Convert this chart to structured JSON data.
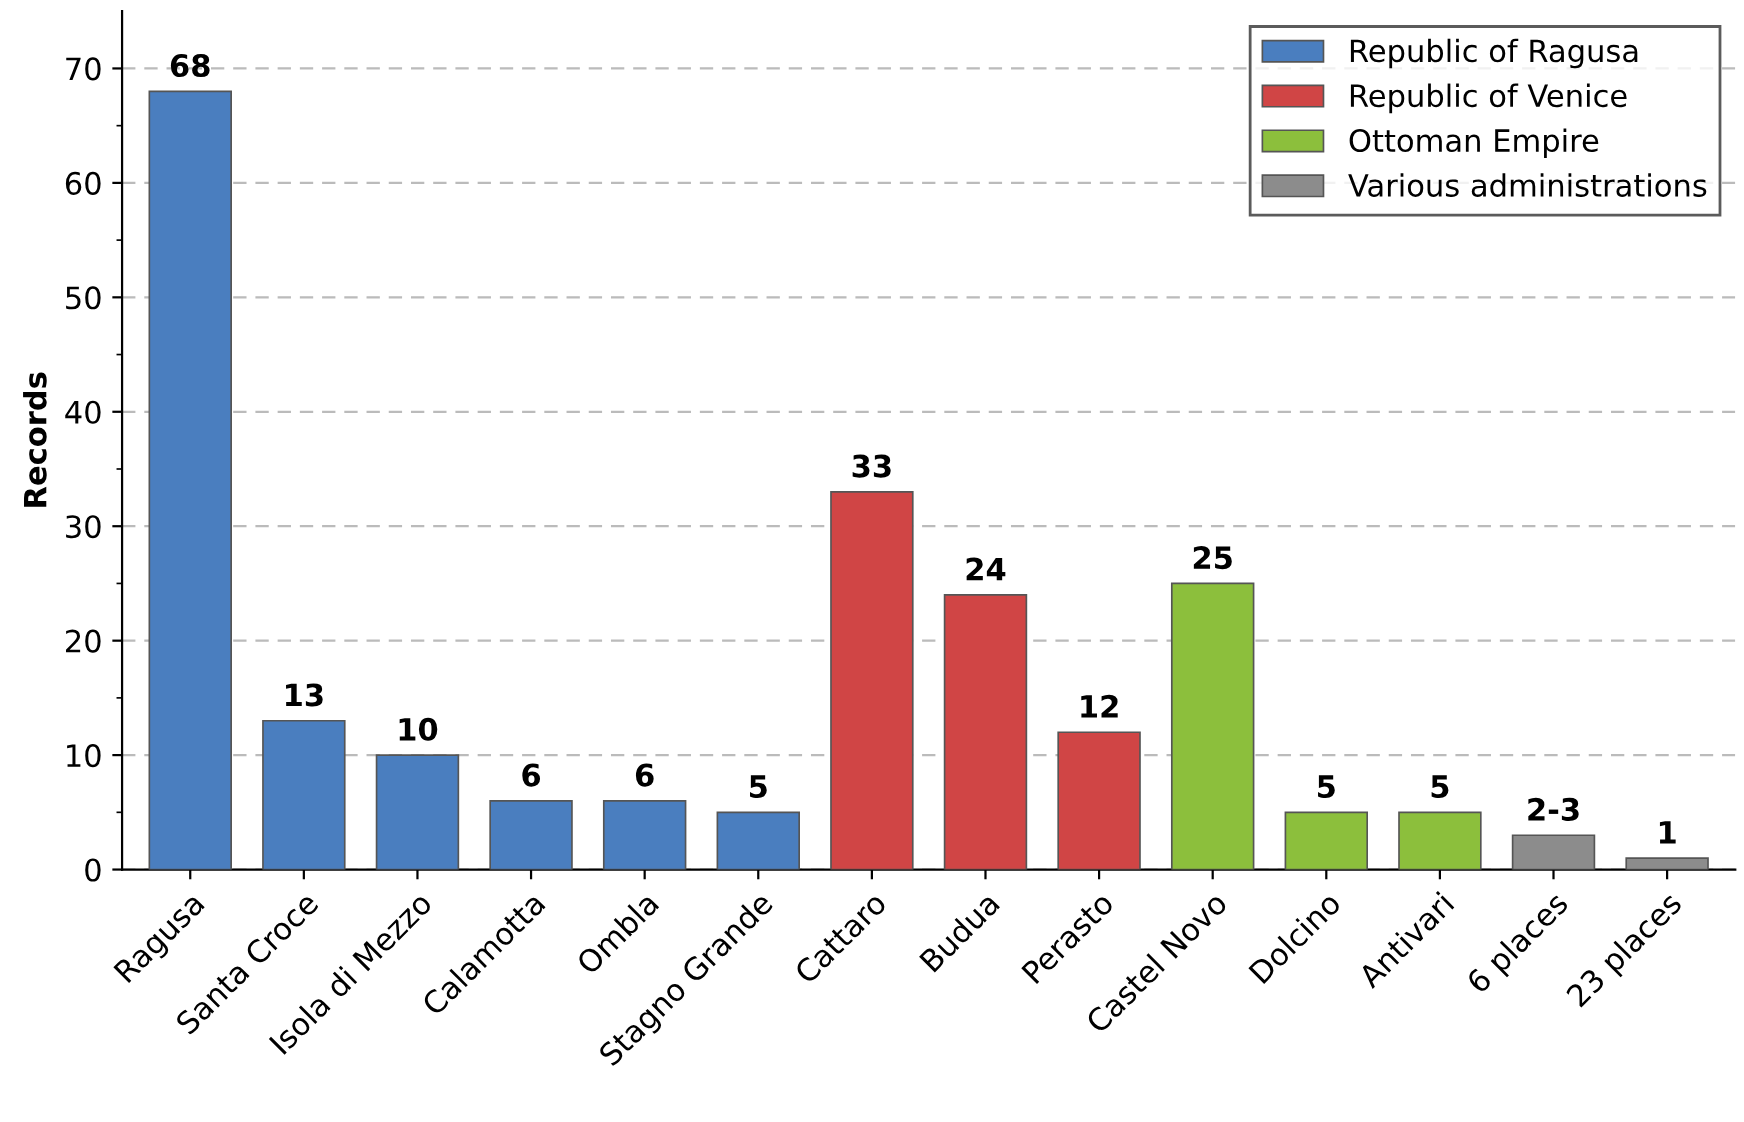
{
  "chart_data": {
    "type": "bar",
    "ylabel": "Records",
    "categories": [
      "Ragusa",
      "Santa Croce",
      "Isola di Mezzo",
      "Calamotta",
      "Ombla",
      "Stagno Grande",
      "Cattaro",
      "Budua",
      "Perasto",
      "Castel Novo",
      "Dolcino",
      "Antivari",
      "6 places",
      "23 places"
    ],
    "series": [
      {
        "name": "Republic of Ragusa",
        "color": "#4a7ebf",
        "values": [
          68,
          13,
          10,
          6,
          6,
          5,
          null,
          null,
          null,
          null,
          null,
          null,
          null,
          null
        ],
        "value_labels": [
          "68",
          "13",
          "10",
          "6",
          "6",
          "5",
          null,
          null,
          null,
          null,
          null,
          null,
          null,
          null
        ]
      },
      {
        "name": "Republic of Venice",
        "color": "#d04545",
        "values": [
          null,
          null,
          null,
          null,
          null,
          null,
          33,
          24,
          12,
          null,
          null,
          null,
          null,
          null
        ],
        "value_labels": [
          null,
          null,
          null,
          null,
          null,
          null,
          "33",
          "24",
          "12",
          null,
          null,
          null,
          null,
          null
        ]
      },
      {
        "name": "Ottoman Empire",
        "color": "#8cbf3c",
        "values": [
          null,
          null,
          null,
          null,
          null,
          null,
          null,
          null,
          null,
          25,
          5,
          5,
          null,
          null
        ],
        "value_labels": [
          null,
          null,
          null,
          null,
          null,
          null,
          null,
          null,
          null,
          "25",
          "5",
          "5",
          null,
          null
        ]
      },
      {
        "name": "Various administrations",
        "color": "#8c8c8c",
        "values": [
          null,
          null,
          null,
          null,
          null,
          null,
          null,
          null,
          null,
          null,
          null,
          null,
          3,
          1
        ],
        "value_labels": [
          null,
          null,
          null,
          null,
          null,
          null,
          null,
          null,
          null,
          null,
          null,
          null,
          "2-3",
          "1"
        ]
      }
    ],
    "ylim": [
      0,
      75
    ],
    "yticks": [
      0,
      {
        "value": 5,
        "label": null
      },
      10,
      {
        "value": 15,
        "label": null
      },
      20,
      {
        "value": 25,
        "label": null
      },
      30,
      {
        "value": 35,
        "label": null
      },
      40,
      {
        "value": 45,
        "label": null
      },
      50,
      {
        "value": 55,
        "label": null
      },
      60,
      {
        "value": 65,
        "label": null
      },
      70
    ],
    "grid": "y",
    "legend": "top right"
  }
}
